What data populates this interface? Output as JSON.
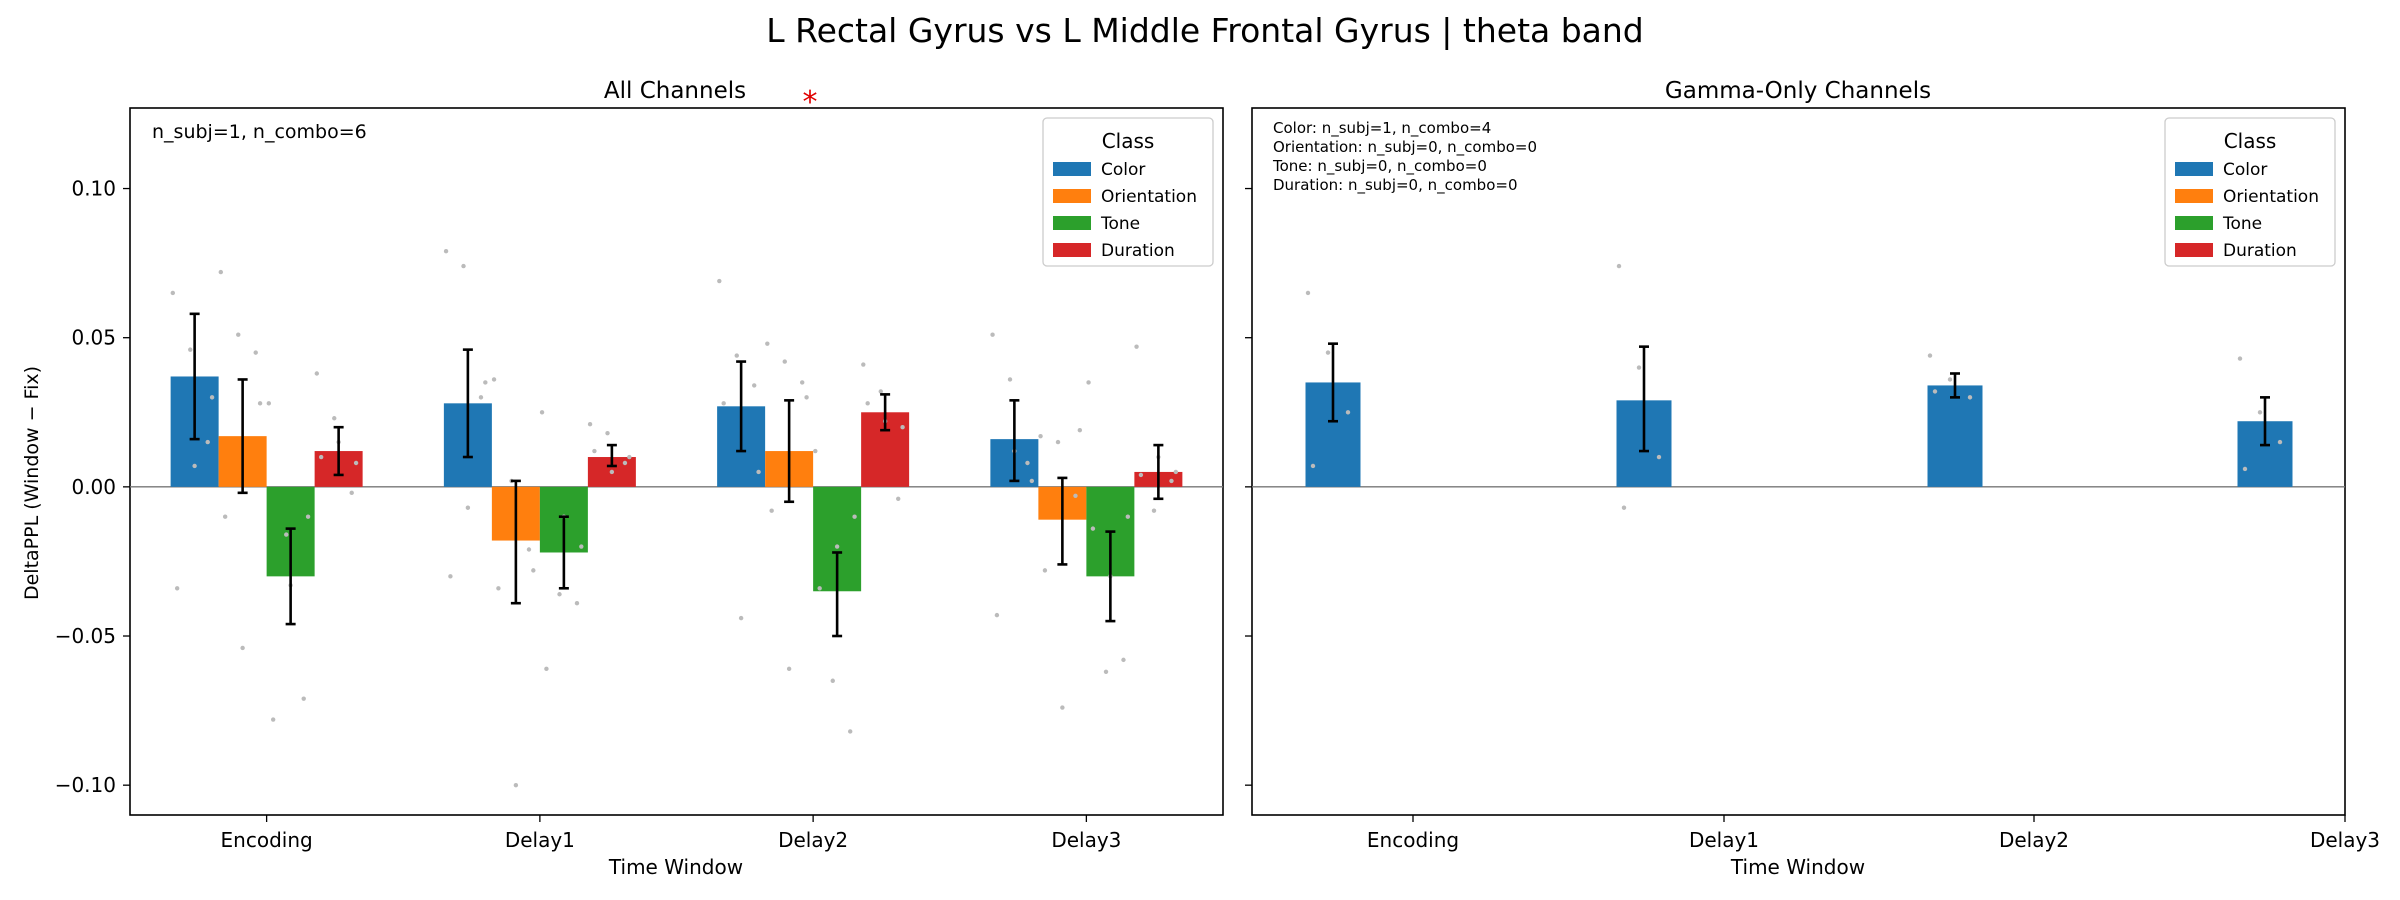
{
  "figure": {
    "title": "L Rectal Gyrus vs L Middle Frontal Gyrus  |  theta band"
  },
  "significance_marker": "*",
  "colors": {
    "Color": "#1f77b4",
    "Orientation": "#ff7f0e",
    "Tone": "#2ca02c",
    "Duration": "#d62728",
    "points": "#bbbbbb",
    "zero_line": "#777777"
  },
  "chart_data": [
    {
      "type": "bar",
      "title": "All Channels",
      "xlabel": "Time Window",
      "ylabel": "DeltaPPL (Window − Fix)",
      "ylim": [
        -0.11,
        0.127
      ],
      "yticks": [
        -0.1,
        -0.05,
        0.0,
        0.05,
        0.1
      ],
      "ytick_labels": [
        "−0.10",
        "−0.05",
        "0.00",
        "0.05",
        "0.10"
      ],
      "categories": [
        "Encoding",
        "Delay1",
        "Delay2",
        "Delay3"
      ],
      "annotation": "n_subj=1, n_combo=6",
      "legend": {
        "title": "Class",
        "placement": "top-right",
        "entries": [
          "Color",
          "Orientation",
          "Tone",
          "Duration"
        ]
      },
      "series": [
        {
          "name": "Color",
          "values": [
            0.037,
            0.028,
            0.027,
            0.016
          ],
          "err_low": [
            0.016,
            0.01,
            0.012,
            0.002
          ],
          "err_high": [
            0.058,
            0.046,
            0.042,
            0.029
          ],
          "points": [
            [
              0.065,
              0.046,
              0.015,
              -0.034,
              0.007,
              0.03
            ],
            [
              0.079,
              0.074,
              0.03,
              -0.03,
              -0.007,
              0.035
            ],
            [
              0.069,
              0.044,
              0.034,
              0.028,
              -0.044,
              0.005
            ],
            [
              0.051,
              0.036,
              0.008,
              -0.043,
              0.012,
              0.002
            ]
          ]
        },
        {
          "name": "Orientation",
          "values": [
            0.017,
            -0.018,
            0.012,
            -0.011
          ],
          "err_low": [
            -0.002,
            -0.039,
            -0.005,
            -0.026
          ],
          "err_high": [
            0.036,
            0.002,
            0.029,
            0.003
          ],
          "points": [
            [
              0.072,
              0.051,
              0.045,
              -0.01,
              -0.054,
              0.028
            ],
            [
              0.036,
              0.002,
              -0.021,
              -0.034,
              -0.1,
              -0.028
            ],
            [
              0.048,
              0.042,
              0.035,
              -0.008,
              -0.061,
              0.03
            ],
            [
              0.017,
              0.015,
              -0.003,
              -0.028,
              -0.074,
              0.019
            ]
          ]
        },
        {
          "name": "Tone",
          "values": [
            -0.03,
            -0.022,
            -0.035,
            -0.03
          ],
          "err_low": [
            -0.046,
            -0.034,
            -0.05,
            -0.045
          ],
          "err_high": [
            -0.014,
            -0.01,
            -0.022,
            -0.015
          ],
          "points": [
            [
              0.028,
              -0.016,
              -0.071,
              -0.078,
              -0.033,
              -0.01
            ],
            [
              0.025,
              -0.036,
              -0.039,
              -0.061,
              -0.01,
              -0.02
            ],
            [
              0.012,
              -0.065,
              -0.082,
              -0.034,
              -0.02,
              -0.01
            ],
            [
              0.035,
              -0.062,
              -0.058,
              -0.014,
              -0.03,
              -0.01
            ]
          ]
        },
        {
          "name": "Duration",
          "values": [
            0.012,
            0.01,
            0.025,
            0.005
          ],
          "err_low": [
            0.004,
            0.007,
            0.019,
            -0.004
          ],
          "err_high": [
            0.02,
            0.014,
            0.031,
            0.014
          ],
          "points": [
            [
              0.038,
              0.023,
              -0.002,
              0.01,
              0.015,
              0.008
            ],
            [
              0.021,
              0.018,
              0.008,
              0.012,
              0.005,
              0.01
            ],
            [
              0.041,
              0.032,
              -0.004,
              0.028,
              0.022,
              0.02
            ],
            [
              0.047,
              -0.008,
              0.002,
              0.004,
              0.01,
              0.005
            ]
          ]
        }
      ]
    },
    {
      "type": "bar",
      "title": "Gamma-Only Channels",
      "xlabel": "Time Window",
      "ylabel": "",
      "ylim": [
        -0.11,
        0.127
      ],
      "categories": [
        "Encoding",
        "Delay1",
        "Delay2",
        "Delay3"
      ],
      "annotation_lines": [
        "Color: n_subj=1, n_combo=4",
        "Orientation: n_subj=0, n_combo=0",
        "Tone: n_subj=0, n_combo=0",
        "Duration: n_subj=0, n_combo=0"
      ],
      "legend": {
        "title": "Class",
        "placement": "top-right",
        "entries": [
          "Color",
          "Orientation",
          "Tone",
          "Duration"
        ]
      },
      "series": [
        {
          "name": "Color",
          "values": [
            0.035,
            0.029,
            0.034,
            0.022
          ],
          "err_low": [
            0.022,
            0.012,
            0.03,
            0.014
          ],
          "err_high": [
            0.048,
            0.047,
            0.038,
            0.03
          ],
          "points": [
            [
              0.065,
              0.045,
              0.025,
              0.007
            ],
            [
              0.074,
              0.04,
              0.01,
              -0.007
            ],
            [
              0.044,
              0.036,
              0.03,
              0.032
            ],
            [
              0.043,
              0.025,
              0.015,
              0.006
            ]
          ]
        }
      ]
    }
  ]
}
